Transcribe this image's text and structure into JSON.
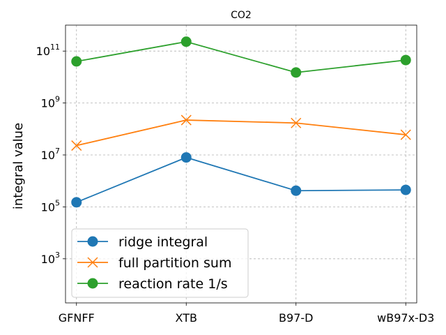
{
  "chart_data": {
    "type": "line",
    "title": "CO2",
    "xlabel": "",
    "ylabel": "integral value",
    "yscale": "log",
    "ylim": [
      20,
      1000000000000.0
    ],
    "grid": true,
    "legend_position": "lower-left",
    "categories": [
      "GFNFF",
      "XTB",
      "B97-D",
      "wB97x-D3"
    ],
    "y_ticks": [
      {
        "exp": 3,
        "base": "10",
        "sup": "3"
      },
      {
        "exp": 5,
        "base": "10",
        "sup": "5"
      },
      {
        "exp": 7,
        "base": "10",
        "sup": "7"
      },
      {
        "exp": 9,
        "base": "10",
        "sup": "9"
      },
      {
        "exp": 11,
        "base": "10",
        "sup": "11"
      }
    ],
    "series": [
      {
        "name": "ridge integral",
        "color": "#1f77b4",
        "marker": "circle",
        "values": [
          150000,
          8000000,
          420000,
          450000
        ]
      },
      {
        "name": "full partition sum",
        "color": "#ff7f0e",
        "marker": "x",
        "values": [
          23000000,
          220000000,
          170000000,
          60000000
        ]
      },
      {
        "name": "reaction rate 1/s",
        "color": "#2ca02c",
        "marker": "circle",
        "values": [
          40000000000,
          230000000000,
          15000000000,
          45000000000
        ]
      }
    ]
  }
}
